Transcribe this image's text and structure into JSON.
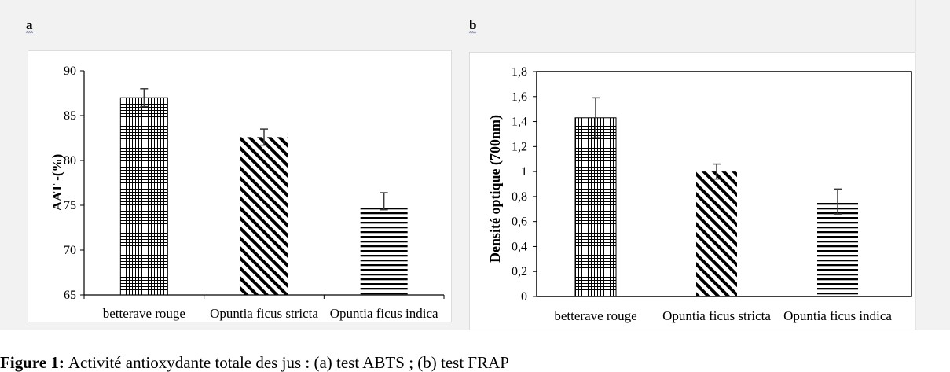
{
  "figure": {
    "caption_label": "Figure 1:",
    "caption_text": "Activité antioxydante totale des jus : (a) test ABTS ; (b) test FRAP"
  },
  "colors": {
    "background": "#f2f2f2",
    "panel": "#ffffff",
    "bars": "#000000",
    "error_bars": "#3a3a3a",
    "axes": "#000000"
  },
  "chart_data": [
    {
      "panel": "a",
      "type": "bar",
      "categories": [
        "betterave rouge",
        "Opuntia ficus stricta",
        "Opuntia ficus indica"
      ],
      "values": [
        87,
        82.6,
        75
      ],
      "error_high": [
        88,
        83.5,
        76.4
      ],
      "error_low": [
        86,
        81.7,
        74.5
      ],
      "ylabel": "AAT -(%)",
      "ylim": [
        65,
        90
      ],
      "yticks": [
        65,
        70,
        75,
        80,
        85,
        90
      ],
      "ytick_labels": [
        "65",
        "70",
        "75",
        "80",
        "85",
        "90"
      ],
      "bar_patterns": [
        "grid",
        "diagonal",
        "horizontal"
      ],
      "grid": false
    },
    {
      "panel": "b",
      "type": "bar",
      "categories": [
        "betterave rouge",
        "Opuntia ficus stricta",
        "Opuntia ficus indica"
      ],
      "values": [
        1.43,
        1.0,
        0.76
      ],
      "error_high": [
        1.59,
        1.06,
        0.86
      ],
      "error_low": [
        1.27,
        0.94,
        0.66
      ],
      "ylabel": "Densité optique (700nm)",
      "ylim": [
        0,
        1.8
      ],
      "yticks": [
        0,
        0.2,
        0.4,
        0.6,
        0.8,
        1.0,
        1.2,
        1.4,
        1.6,
        1.8
      ],
      "ytick_labels": [
        "0",
        "0,2",
        "0,4",
        "0,6",
        "0,8",
        "1",
        "1,2",
        "1,4",
        "1,6",
        "1,8"
      ],
      "bar_patterns": [
        "grid",
        "diagonal",
        "horizontal"
      ],
      "grid": false
    }
  ]
}
